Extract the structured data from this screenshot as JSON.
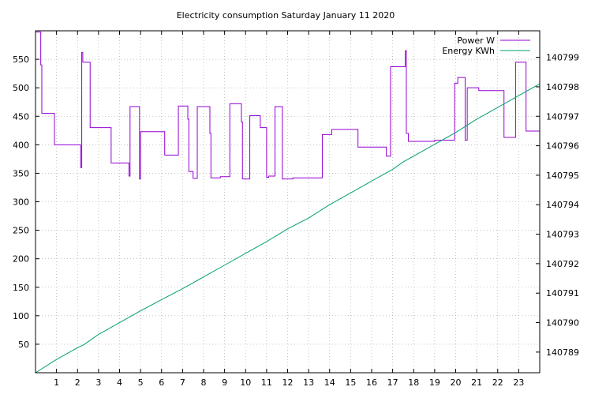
{
  "chart_data": {
    "type": "line",
    "title": "Electricity consumption Saturday January 11 2020",
    "xlabel": "",
    "ylabel": "",
    "y2label": "",
    "grid": true,
    "legend_position": "top-right",
    "xlim": [
      0,
      24
    ],
    "ylim": [
      0,
      600
    ],
    "y2lim": [
      140788.3,
      140799.9
    ],
    "xticks": [
      "1",
      "2",
      "3",
      "4",
      "5",
      "6",
      "7",
      "8",
      "9",
      "10",
      "11",
      "12",
      "13",
      "14",
      "15",
      "16",
      "17",
      "18",
      "19",
      "20",
      "21",
      "22",
      "23"
    ],
    "yticks": [
      "50",
      "100",
      "150",
      "200",
      "250",
      "300",
      "350",
      "400",
      "450",
      "500",
      "550"
    ],
    "y2ticks": [
      "140789",
      "140790",
      "140791",
      "140792",
      "140793",
      "140794",
      "140795",
      "140796",
      "140797",
      "140798",
      "140799"
    ],
    "colors": {
      "power": "#9400d3",
      "energy": "#009e73",
      "grid": "#a0a0a0",
      "axis": "#000000"
    },
    "series": [
      {
        "name": "Power W",
        "axis": "y",
        "x": [
          0,
          0.25,
          0.25,
          0.3,
          0.3,
          0.9,
          0.9,
          2.15,
          2.15,
          2.2,
          2.2,
          2.25,
          2.25,
          2.35,
          2.35,
          2.6,
          2.6,
          3.6,
          3.6,
          4.45,
          4.45,
          4.5,
          4.5,
          4.95,
          4.95,
          5.0,
          5.0,
          6.15,
          6.15,
          6.8,
          6.8,
          7.25,
          7.25,
          7.3,
          7.3,
          7.5,
          7.5,
          7.7,
          7.7,
          8.3,
          8.3,
          8.35,
          8.35,
          8.8,
          8.8,
          9.25,
          9.25,
          9.8,
          9.8,
          9.85,
          9.85,
          10.2,
          10.2,
          10.7,
          10.7,
          11.0,
          11.0,
          11.1,
          11.1,
          11.4,
          11.4,
          11.75,
          11.75,
          12.25,
          12.25,
          12.8,
          12.8,
          13.65,
          13.65,
          14.1,
          14.1,
          15.35,
          15.35,
          16.7,
          16.7,
          16.9,
          16.9,
          17.6,
          17.6,
          17.65,
          17.65,
          17.75,
          17.75,
          19.0,
          19.0,
          19.95,
          19.95,
          20.1,
          20.1,
          20.45,
          20.45,
          20.55,
          20.55,
          21.1,
          21.1,
          22.3,
          22.3,
          22.85,
          22.85,
          23.35,
          23.35,
          24.0
        ],
        "values": [
          598,
          598,
          540,
          540,
          455,
          455,
          400,
          400,
          360,
          360,
          562,
          562,
          545,
          545,
          545,
          545,
          430,
          430,
          368,
          368,
          345,
          345,
          467,
          467,
          340,
          340,
          423,
          423,
          382,
          382,
          468,
          468,
          445,
          445,
          353,
          353,
          341,
          341,
          467,
          467,
          420,
          420,
          342,
          342,
          344,
          344,
          472,
          472,
          440,
          440,
          340,
          340,
          451,
          451,
          430,
          430,
          343,
          343,
          345,
          345,
          467,
          467,
          340,
          340,
          342,
          342,
          342,
          342,
          418,
          418,
          427,
          427,
          396,
          396,
          380,
          380,
          537,
          537,
          565,
          565,
          420,
          420,
          406,
          406,
          408,
          408,
          508,
          508,
          518,
          518,
          408,
          408,
          500,
          500,
          495,
          495,
          413,
          413,
          545,
          545,
          424,
          424
        ]
      },
      {
        "name": "Energy KWh",
        "axis": "y2",
        "x": [
          0,
          1,
          2,
          2.3,
          3,
          4,
          5,
          6,
          7,
          7.5,
          8,
          9,
          10,
          11,
          12,
          13,
          14,
          15,
          16,
          17,
          17.5,
          18,
          19,
          20,
          21,
          22,
          23,
          24
        ],
        "values": [
          140788.3,
          140788.75,
          140789.15,
          140789.25,
          140789.6,
          140790.0,
          140790.4,
          140790.78,
          140791.15,
          140791.35,
          140791.55,
          140791.95,
          140792.35,
          140792.75,
          140793.18,
          140793.55,
          140794.0,
          140794.4,
          140794.8,
          140795.2,
          140795.45,
          140795.65,
          140796.05,
          140796.45,
          140796.9,
          140797.3,
          140797.7,
          140798.1
        ]
      }
    ]
  }
}
